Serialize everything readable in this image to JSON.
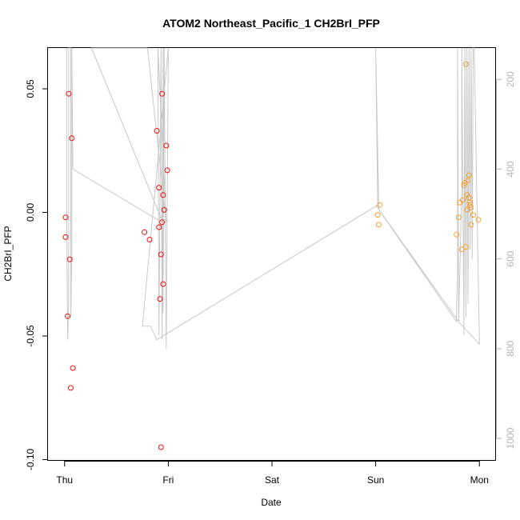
{
  "chart_data": {
    "type": "scatter",
    "title": "ATOM2 Northeast_Pacific_1 CH2BrI_PFP",
    "xlabel": "Date",
    "ylabel": "CH2BrI_PFP",
    "x_ticks": [
      "Thu",
      "Fri",
      "Sat",
      "Sun",
      "Mon"
    ],
    "y_ticks": [
      "-0.10",
      "-0.05",
      "0.00",
      "0.05"
    ],
    "y2_ticks": [
      "200",
      "400",
      "600",
      "800",
      "1000"
    ],
    "xlim": [
      -0.16,
      4.16
    ],
    "ylim": [
      -0.1005,
      0.0665
    ],
    "y2lim": [
      1050,
      130
    ],
    "colors": {
      "series_red": "#ee1111",
      "series_orange": "#f5a030",
      "profile": "#c8c8c8"
    },
    "series": [
      {
        "color": "#ee1111",
        "points": [
          [
            0.01,
            -0.002
          ],
          [
            0.01,
            -0.01
          ],
          [
            0.03,
            -0.042
          ],
          [
            0.04,
            0.048
          ],
          [
            0.05,
            -0.019
          ],
          [
            0.06,
            -0.071
          ],
          [
            0.07,
            0.03
          ],
          [
            0.08,
            -0.063
          ],
          [
            0.77,
            -0.008
          ],
          [
            0.82,
            -0.011
          ],
          [
            0.89,
            0.033
          ],
          [
            0.91,
            0.01
          ],
          [
            0.91,
            -0.006
          ],
          [
            0.92,
            -0.035
          ],
          [
            0.93,
            -0.017
          ],
          [
            0.93,
            -0.095
          ],
          [
            0.94,
            0.048
          ],
          [
            0.94,
            -0.004
          ],
          [
            0.95,
            -0.029
          ],
          [
            0.95,
            0.007
          ],
          [
            0.96,
            0.001
          ],
          [
            0.98,
            0.027
          ],
          [
            0.99,
            0.017
          ]
        ]
      },
      {
        "color": "#f5a030",
        "points": [
          [
            3.02,
            -0.001
          ],
          [
            3.03,
            -0.005
          ],
          [
            3.04,
            0.003
          ],
          [
            3.78,
            -0.009
          ],
          [
            3.8,
            -0.002
          ],
          [
            3.81,
            0.004
          ],
          [
            3.83,
            -0.015
          ],
          [
            3.84,
            0.005
          ],
          [
            3.85,
            0.011
          ],
          [
            3.86,
            0.012
          ],
          [
            3.87,
            -0.014
          ],
          [
            3.87,
            0.06
          ],
          [
            3.88,
            0.001
          ],
          [
            3.88,
            0.007
          ],
          [
            3.89,
            0.013
          ],
          [
            3.9,
            0.015
          ],
          [
            3.9,
            0.006
          ],
          [
            3.91,
            0.004
          ],
          [
            3.91,
            0.003
          ],
          [
            3.92,
            0.002
          ],
          [
            3.92,
            -0.005
          ],
          [
            3.94,
            -0.001
          ],
          [
            3.99,
            -0.003
          ]
        ]
      }
    ],
    "profile": [
      [
        0.02,
        130
      ],
      [
        0.02,
        480
      ],
      [
        0.03,
        780
      ],
      [
        0.04,
        700
      ],
      [
        0.04,
        130
      ],
      [
        0.06,
        130
      ],
      [
        0.06,
        730
      ],
      [
        0.07,
        590
      ],
      [
        0.07,
        130
      ],
      [
        0.08,
        400
      ],
      [
        0.95,
        520
      ],
      [
        0.26,
        130
      ],
      [
        0.8,
        130
      ],
      [
        0.98,
        520
      ],
      [
        0.9,
        130
      ],
      [
        0.91,
        770
      ],
      [
        0.93,
        130
      ],
      [
        0.94,
        780
      ],
      [
        0.95,
        130
      ],
      [
        0.95,
        720
      ],
      [
        0.96,
        130
      ],
      [
        0.98,
        800
      ],
      [
        1.0,
        130
      ],
      [
        0.75,
        750
      ],
      [
        0.83,
        750
      ],
      [
        0.89,
        780
      ],
      [
        3.02,
        480
      ],
      [
        3.0,
        130
      ],
      [
        3.03,
        490
      ],
      [
        3.78,
        740
      ],
      [
        3.78,
        700
      ],
      [
        3.79,
        640
      ],
      [
        3.79,
        130
      ],
      [
        3.8,
        740
      ],
      [
        3.83,
        440
      ],
      [
        3.83,
        130
      ],
      [
        3.85,
        730
      ],
      [
        3.85,
        770
      ],
      [
        3.86,
        130
      ],
      [
        3.87,
        730
      ],
      [
        3.88,
        130
      ],
      [
        3.89,
        700
      ],
      [
        3.9,
        130
      ],
      [
        3.91,
        580
      ],
      [
        3.92,
        130
      ],
      [
        3.93,
        600
      ],
      [
        3.94,
        130
      ],
      [
        3.95,
        130
      ],
      [
        4.0,
        790
      ],
      [
        3.8,
        740
      ],
      [
        3.0,
        480
      ]
    ]
  }
}
